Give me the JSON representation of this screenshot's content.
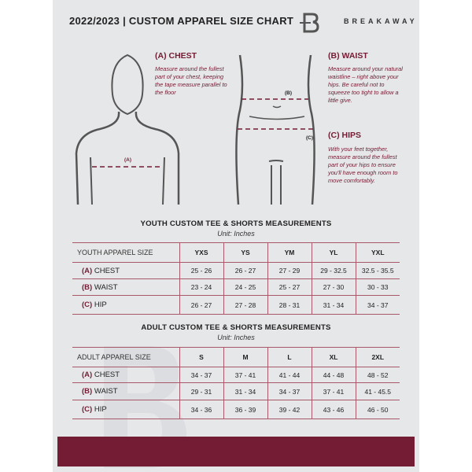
{
  "header": {
    "title": "2022/2023  |  CUSTOM APPAREL SIZE CHART",
    "brand": "BREAKAWAY",
    "logo_letter": "B"
  },
  "sections": {
    "chest": {
      "label": "(A) CHEST",
      "marker": "(A)",
      "text": "Measure around the fullest part of your chest, keeping the tape measure parallel to the floor"
    },
    "waist": {
      "label": "(B) WAIST",
      "marker": "(B)",
      "text": "Measure around your natural waistline – right above your hips. Be careful not to squeeze too tight to allow a little give."
    },
    "hips": {
      "label": "(C) HIPS",
      "marker": "(C)",
      "text": "With your feet together, measure around the fullest part of your hips to ensure you'll have enough room to move comfortably."
    }
  },
  "youth": {
    "title": "YOUTH CUSTOM TEE & SHORTS MEASUREMENTS",
    "unit": "Unit: Inches",
    "header_label": "YOUTH APPAREL SIZE",
    "sizes": [
      "YXS",
      "YS",
      "YM",
      "YL",
      "YXL"
    ],
    "rows": [
      {
        "code": "(A)",
        "name": "CHEST",
        "values": [
          "25 - 26",
          "26 - 27",
          "27 - 29",
          "29 - 32.5",
          "32.5 - 35.5"
        ]
      },
      {
        "code": "(B)",
        "name": "WAIST",
        "values": [
          "23 - 24",
          "24 - 25",
          "25 - 27",
          "27 - 30",
          "30 - 33"
        ]
      },
      {
        "code": "(C)",
        "name": "HIP",
        "values": [
          "26 - 27",
          "27 - 28",
          "28 - 31",
          "31 - 34",
          "34 - 37"
        ]
      }
    ]
  },
  "adult": {
    "title": "ADULT CUSTOM TEE & SHORTS MEASUREMENTS",
    "unit": "Unit: Inches",
    "header_label": "ADULT APPAREL SIZE",
    "sizes": [
      "S",
      "M",
      "L",
      "XL",
      "2XL"
    ],
    "rows": [
      {
        "code": "(A)",
        "name": "CHEST",
        "values": [
          "34 - 37",
          "37 - 41",
          "41 - 44",
          "44 - 48",
          "48 - 52"
        ]
      },
      {
        "code": "(B)",
        "name": "WAIST",
        "values": [
          "29 - 31",
          "31 - 34",
          "34 - 37",
          "37 - 41",
          "41 - 45.5"
        ]
      },
      {
        "code": "(C)",
        "name": "HIP",
        "values": [
          "34 - 36",
          "36 - 39",
          "39 - 42",
          "43 - 46",
          "46 - 50"
        ]
      }
    ]
  },
  "colors": {
    "accent": "#741c33",
    "background": "#e6e7e9",
    "table_line": "#a85868"
  }
}
